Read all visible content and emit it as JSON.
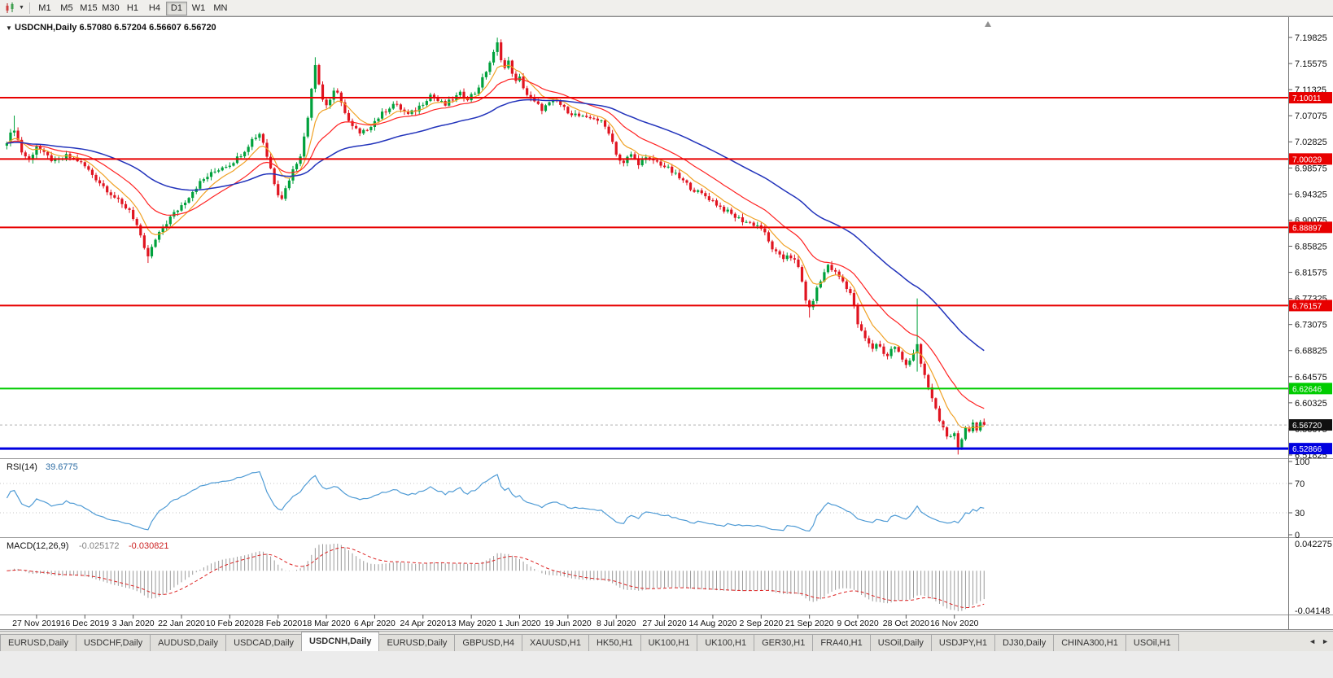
{
  "icons": {
    "chart_menu_arrow": "▼",
    "toolbar_caret": "▼",
    "tab_scroll_left": "◄",
    "tab_scroll_right": "►"
  },
  "toolbar": {
    "timeframes": [
      "M1",
      "M5",
      "M15",
      "M30",
      "H1",
      "H4",
      "D1",
      "W1",
      "MN"
    ],
    "active_timeframe": "D1"
  },
  "chart": {
    "symbol": "USDCNH",
    "period": "Daily",
    "title": "USDCNH,Daily  6.57080 6.57204 6.56607 6.56720",
    "ohlc": {
      "open": "6.57080",
      "high": "6.57204",
      "low": "6.56607",
      "close": "6.56720"
    }
  },
  "indicators": {
    "rsi": {
      "label": "RSI(14)",
      "value": "39.6775",
      "axis_labels": [
        "100",
        "70",
        "30",
        "0"
      ],
      "dotted_levels": [
        70,
        30
      ]
    },
    "macd": {
      "label": "MACD(12,26,9)",
      "value_main": "-0.025172",
      "value_signal": "-0.030821",
      "axis_top": "0.042275",
      "axis_bottom": "-0.04148"
    }
  },
  "chart_data": {
    "type": "candlestick",
    "symbol": "USDCNH",
    "timeframe": "Daily",
    "last_close": 6.5672,
    "num_candles": 264,
    "price_axis_ticks": [
      "7.19825",
      "7.15575",
      "7.11325",
      "7.07075",
      "7.02825",
      "6.98575",
      "6.94325",
      "6.90075",
      "6.85825",
      "6.81575",
      "6.77325",
      "6.73075",
      "6.68825",
      "6.64575",
      "6.60325",
      "6.56075",
      "6.51825"
    ],
    "x_axis": {
      "labels": [
        "27 Nov 2019",
        "16 Dec 2019",
        "3 Jan 2020",
        "22 Jan 2020",
        "10 Feb 2020",
        "28 Feb 2020",
        "18 Mar 2020",
        "6 Apr 2020",
        "24 Apr 2020",
        "13 May 2020",
        "1 Jun 2020",
        "19 Jun 2020",
        "8 Jul 2020",
        "27 Jul 2020",
        "14 Aug 2020",
        "2 Sep 2020",
        "21 Sep 2020",
        "9 Oct 2020",
        "28 Oct 2020",
        "16 Nov 2020"
      ],
      "first_label_day": 8,
      "label_step_days": 13
    },
    "close_keyframes": [
      [
        0,
        7.03
      ],
      [
        2,
        7.05
      ],
      [
        4,
        7.012
      ],
      [
        6,
        6.998
      ],
      [
        8,
        7.022
      ],
      [
        10,
        7.008
      ],
      [
        13,
        6.995
      ],
      [
        16,
        7.005
      ],
      [
        19,
        6.998
      ],
      [
        21,
        6.988
      ],
      [
        23,
        6.975
      ],
      [
        25,
        6.962
      ],
      [
        27,
        6.95
      ],
      [
        29,
        6.938
      ],
      [
        31,
        6.925
      ],
      [
        33,
        6.918
      ],
      [
        35,
        6.892
      ],
      [
        36,
        6.872
      ],
      [
        37,
        6.852
      ],
      [
        38,
        6.842
      ],
      [
        39,
        6.855
      ],
      [
        40,
        6.868
      ],
      [
        41,
        6.878
      ],
      [
        42,
        6.888
      ],
      [
        44,
        6.905
      ],
      [
        46,
        6.918
      ],
      [
        48,
        6.932
      ],
      [
        50,
        6.948
      ],
      [
        52,
        6.962
      ],
      [
        54,
        6.972
      ],
      [
        56,
        6.98
      ],
      [
        58,
        6.988
      ],
      [
        60,
        6.992
      ],
      [
        62,
        7.002
      ],
      [
        64,
        7.015
      ],
      [
        66,
        7.032
      ],
      [
        68,
        7.042
      ],
      [
        69,
        7.028
      ],
      [
        70,
        7.005
      ],
      [
        71,
        6.985
      ],
      [
        72,
        6.962
      ],
      [
        73,
        6.945
      ],
      [
        74,
        6.938
      ],
      [
        75,
        6.952
      ],
      [
        76,
        6.968
      ],
      [
        77,
        6.982
      ],
      [
        78,
        6.995
      ],
      [
        79,
        7.008
      ],
      [
        80,
        7.035
      ],
      [
        81,
        7.068
      ],
      [
        82,
        7.118
      ],
      [
        83,
        7.155
      ],
      [
        84,
        7.125
      ],
      [
        85,
        7.098
      ],
      [
        86,
        7.088
      ],
      [
        87,
        7.098
      ],
      [
        88,
        7.112
      ],
      [
        89,
        7.105
      ],
      [
        90,
        7.09
      ],
      [
        91,
        7.078
      ],
      [
        92,
        7.062
      ],
      [
        93,
        7.052
      ],
      [
        94,
        7.048
      ],
      [
        95,
        7.04
      ],
      [
        96,
        7.044
      ],
      [
        98,
        7.056
      ],
      [
        100,
        7.068
      ],
      [
        102,
        7.08
      ],
      [
        104,
        7.09
      ],
      [
        106,
        7.082
      ],
      [
        108,
        7.072
      ],
      [
        110,
        7.08
      ],
      [
        112,
        7.092
      ],
      [
        114,
        7.105
      ],
      [
        116,
        7.095
      ],
      [
        118,
        7.088
      ],
      [
        120,
        7.098
      ],
      [
        122,
        7.106
      ],
      [
        124,
        7.1
      ],
      [
        126,
        7.108
      ],
      [
        128,
        7.13
      ],
      [
        130,
        7.158
      ],
      [
        131,
        7.172
      ],
      [
        132,
        7.188
      ],
      [
        133,
        7.165
      ],
      [
        134,
        7.148
      ],
      [
        135,
        7.158
      ],
      [
        136,
        7.142
      ],
      [
        137,
        7.125
      ],
      [
        138,
        7.132
      ],
      [
        139,
        7.118
      ],
      [
        140,
        7.105
      ],
      [
        141,
        7.098
      ],
      [
        142,
        7.092
      ],
      [
        144,
        7.082
      ],
      [
        146,
        7.09
      ],
      [
        148,
        7.095
      ],
      [
        150,
        7.082
      ],
      [
        152,
        7.075
      ],
      [
        154,
        7.07
      ],
      [
        156,
        7.065
      ],
      [
        158,
        7.068
      ],
      [
        160,
        7.06
      ],
      [
        162,
        7.045
      ],
      [
        163,
        7.028
      ],
      [
        164,
        7.01
      ],
      [
        165,
        6.998
      ],
      [
        166,
        6.992
      ],
      [
        167,
        7.002
      ],
      [
        168,
        7.008
      ],
      [
        169,
        7.0
      ],
      [
        170,
        6.994
      ],
      [
        172,
        7.0
      ],
      [
        174,
        6.998
      ],
      [
        176,
        6.992
      ],
      [
        178,
        6.984
      ],
      [
        180,
        6.974
      ],
      [
        182,
        6.964
      ],
      [
        184,
        6.954
      ],
      [
        186,
        6.946
      ],
      [
        188,
        6.94
      ],
      [
        190,
        6.932
      ],
      [
        192,
        6.922
      ],
      [
        194,
        6.914
      ],
      [
        196,
        6.906
      ],
      [
        198,
        6.9
      ],
      [
        200,
        6.896
      ],
      [
        202,
        6.892
      ],
      [
        203,
        6.888
      ],
      [
        204,
        6.878
      ],
      [
        205,
        6.865
      ],
      [
        206,
        6.855
      ],
      [
        207,
        6.847
      ],
      [
        208,
        6.841
      ],
      [
        209,
        6.838
      ],
      [
        210,
        6.845
      ],
      [
        211,
        6.841
      ],
      [
        212,
        6.834
      ],
      [
        213,
        6.822
      ],
      [
        214,
        6.8
      ],
      [
        215,
        6.772
      ],
      [
        216,
        6.755
      ],
      [
        217,
        6.772
      ],
      [
        218,
        6.788
      ],
      [
        219,
        6.802
      ],
      [
        220,
        6.815
      ],
      [
        221,
        6.828
      ],
      [
        222,
        6.821
      ],
      [
        223,
        6.815
      ],
      [
        224,
        6.809
      ],
      [
        225,
        6.801
      ],
      [
        226,
        6.792
      ],
      [
        227,
        6.782
      ],
      [
        228,
        6.758
      ],
      [
        229,
        6.732
      ],
      [
        230,
        6.718
      ],
      [
        231,
        6.708
      ],
      [
        232,
        6.698
      ],
      [
        233,
        6.692
      ],
      [
        234,
        6.7
      ],
      [
        235,
        6.694
      ],
      [
        236,
        6.685
      ],
      [
        237,
        6.68
      ],
      [
        238,
        6.69
      ],
      [
        239,
        6.695
      ],
      [
        240,
        6.685
      ],
      [
        241,
        6.672
      ],
      [
        242,
        6.665
      ],
      [
        243,
        6.675
      ],
      [
        244,
        6.685
      ],
      [
        245,
        6.7
      ],
      [
        246,
        6.665
      ],
      [
        247,
        6.645
      ],
      [
        248,
        6.628
      ],
      [
        249,
        6.61
      ],
      [
        250,
        6.592
      ],
      [
        251,
        6.575
      ],
      [
        252,
        6.562
      ],
      [
        253,
        6.552
      ],
      [
        254,
        6.545
      ],
      [
        255,
        6.55
      ],
      [
        256,
        6.528
      ],
      [
        257,
        6.545
      ],
      [
        258,
        6.565
      ],
      [
        259,
        6.558
      ],
      [
        260,
        6.57
      ],
      [
        261,
        6.562
      ],
      [
        262,
        6.571
      ],
      [
        263,
        6.5672
      ]
    ],
    "wick_overrides": [
      {
        "i": 2,
        "high": 7.071
      },
      {
        "i": 38,
        "low": 6.831
      },
      {
        "i": 83,
        "high": 7.166
      },
      {
        "i": 132,
        "high": 7.1979
      },
      {
        "i": 216,
        "low": 6.742
      },
      {
        "i": 245,
        "high": 6.7732,
        "low": 6.654
      },
      {
        "i": 256,
        "low": 6.519
      }
    ],
    "levels": [
      {
        "price": 7.10011,
        "label": "7.10011",
        "color": "#e80000",
        "width": 2
      },
      {
        "price": 7.00029,
        "label": "7.00029",
        "color": "#e80000",
        "width": 2
      },
      {
        "price": 6.88897,
        "label": "6.88897",
        "color": "#e80000",
        "width": 2
      },
      {
        "price": 6.76157,
        "label": "6.76157",
        "color": "#e80000",
        "width": 2
      },
      {
        "price": 6.62646,
        "label": "6.62646",
        "color": "#00cc00",
        "width": 2
      },
      {
        "price": 6.52866,
        "label": "6.52866",
        "color": "#0000e0",
        "width": 3
      }
    ],
    "current_price_tag": {
      "label": "6.56720",
      "price": 6.5672,
      "color": "#101010"
    },
    "ma_periods": {
      "fast": 8,
      "mid": 21,
      "slow": 56
    },
    "colors": {
      "up": "#00a13c",
      "down": "#e01420",
      "ma_fast": "#f0a124",
      "ma_mid": "#ff2222",
      "ma_slow": "#2233bb",
      "rsi_line": "#4f9bd5",
      "macd_bar": "#9a9a9a",
      "macd_signal": "#dd2222",
      "last_price_line": "#b0b0b0",
      "background": "#ffffff"
    }
  },
  "tabs": {
    "items": [
      "EURUSD,Daily",
      "USDCHF,Daily",
      "AUDUSD,Daily",
      "USDCAD,Daily",
      "USDCNH,Daily",
      "EURUSD,Daily",
      "GBPUSD,H4",
      "XAUUSD,H1",
      "HK50,H1",
      "UK100,H1",
      "UK100,H1",
      "GER30,H1",
      "FRA40,H1",
      "USOil,Daily",
      "USDJPY,H1",
      "DJ30,Daily",
      "CHINA300,H1",
      "USOil,H1"
    ],
    "active_index": 4
  }
}
